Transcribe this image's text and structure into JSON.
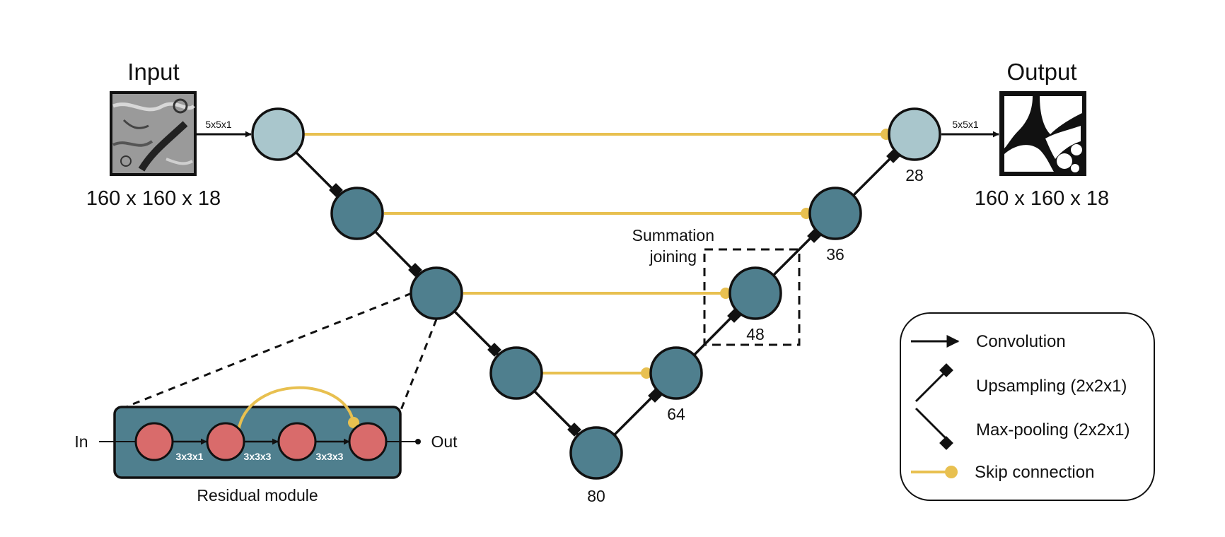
{
  "input": {
    "title": "Input",
    "dims": "160 x 160 x 18",
    "conv_label": "5x5x1"
  },
  "output": {
    "title": "Output",
    "dims": "160 x 160 x 18",
    "conv_label": "5x5x1"
  },
  "node_labels": {
    "n28": "28",
    "n36": "36",
    "n48": "48",
    "n64": "64",
    "n80": "80"
  },
  "summation_label": {
    "line1": "Summation",
    "line2": "joining"
  },
  "residual_module": {
    "title": "Residual module",
    "in_label": "In",
    "out_label": "Out",
    "conv_labels": [
      "3x3x1",
      "3x3x3",
      "3x3x3"
    ]
  },
  "legend": {
    "items": [
      {
        "label": "Convolution",
        "icon": "arrow-icon"
      },
      {
        "label": "Upsampling (2x2x1)",
        "icon": "upsampling-icon"
      },
      {
        "label": "Max-pooling (2x2x1)",
        "icon": "maxpooling-icon"
      },
      {
        "label": "Skip connection",
        "icon": "skip-connection-icon"
      }
    ]
  },
  "colors": {
    "light_node": "#a9c6cc",
    "dark_node": "#4f7f8e",
    "module_bg": "#4f7f8e",
    "residual_node": "#d96b6b",
    "skip": "#e8c050"
  }
}
